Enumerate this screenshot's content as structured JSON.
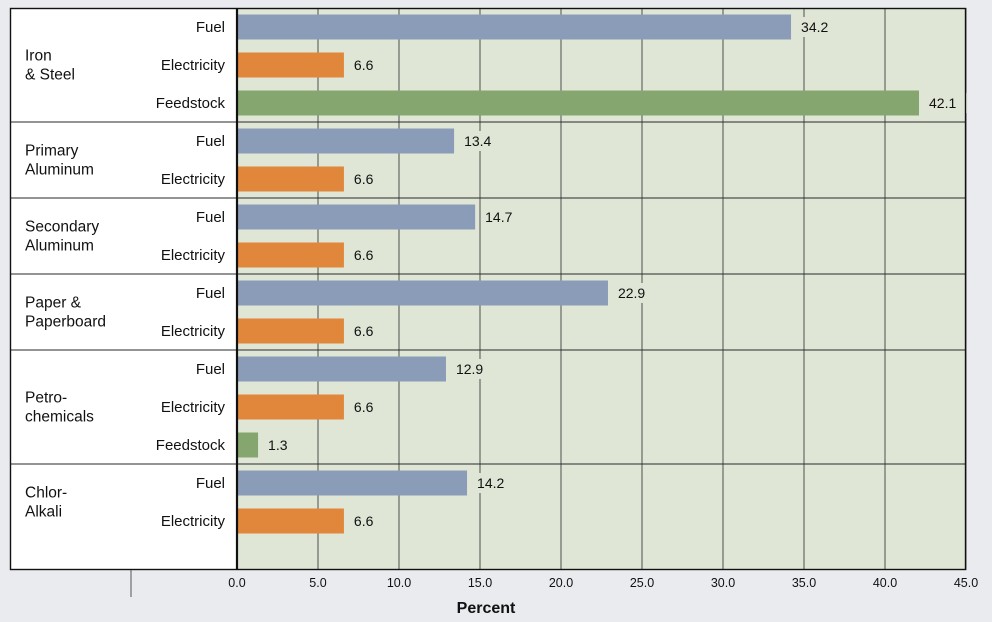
{
  "chart_data": {
    "type": "bar",
    "orientation": "horizontal",
    "xlabel": "Percent",
    "xlim": [
      0,
      45
    ],
    "x_ticks": [
      "0.0",
      "5.0",
      "10.0",
      "15.0",
      "20.0",
      "25.0",
      "30.0",
      "35.0",
      "40.0",
      "45.0"
    ],
    "grid": true,
    "colors": {
      "Fuel": "#8a9cb8",
      "Electricity": "#e0873b",
      "Feedstock": "#86a66f",
      "plot_background": "#dfe6d6",
      "page_background": "#e9ebef",
      "label_highlight": "#dfe6d6"
    },
    "groups": [
      {
        "name_lines": [
          "Iron",
          "& Steel"
        ],
        "bars": [
          {
            "label": "Fuel",
            "value": 34.2,
            "value_label": "34.2"
          },
          {
            "label": "Electricity",
            "value": 6.6,
            "value_label": "6.6"
          },
          {
            "label": "Feedstock",
            "value": 42.1,
            "value_label": "42.1"
          }
        ]
      },
      {
        "name_lines": [
          "Primary",
          "Aluminum"
        ],
        "bars": [
          {
            "label": "Fuel",
            "value": 13.4,
            "value_label": "13.4"
          },
          {
            "label": "Electricity",
            "value": 6.6,
            "value_label": "6.6"
          }
        ]
      },
      {
        "name_lines": [
          "Secondary",
          "Aluminum"
        ],
        "bars": [
          {
            "label": "Fuel",
            "value": 14.7,
            "value_label": "14.7"
          },
          {
            "label": "Electricity",
            "value": 6.6,
            "value_label": "6.6"
          }
        ]
      },
      {
        "name_lines": [
          "Paper &",
          "Paperboard"
        ],
        "bars": [
          {
            "label": "Fuel",
            "value": 22.9,
            "value_label": "22.9"
          },
          {
            "label": "Electricity",
            "value": 6.6,
            "value_label": "6.6"
          }
        ]
      },
      {
        "name_lines": [
          "Petro-",
          "chemicals"
        ],
        "bars": [
          {
            "label": "Fuel",
            "value": 12.9,
            "value_label": "12.9"
          },
          {
            "label": "Electricity",
            "value": 6.6,
            "value_label": "6.6"
          },
          {
            "label": "Feedstock",
            "value": 1.3,
            "value_label": "1.3"
          }
        ]
      },
      {
        "name_lines": [
          "Chlor-",
          "Alkali"
        ],
        "bars": [
          {
            "label": "Fuel",
            "value": 14.2,
            "value_label": "14.2"
          },
          {
            "label": "Electricity",
            "value": 6.6,
            "value_label": "6.6"
          }
        ]
      }
    ]
  }
}
